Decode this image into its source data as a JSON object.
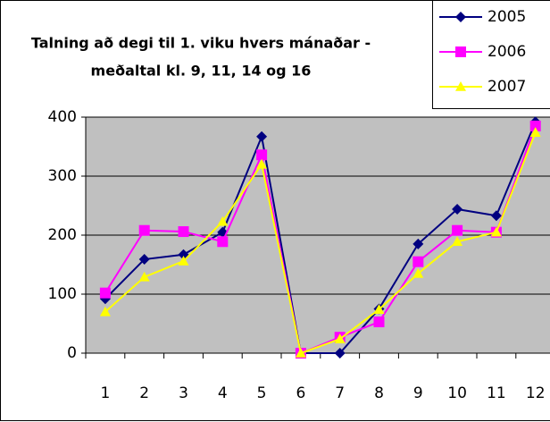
{
  "chart_data": {
    "type": "line",
    "title": [
      "Talning að degi til 1. viku hvers mánaðar -",
      "meðaltal kl. 9, 11, 14 og 16"
    ],
    "categories": [
      "1",
      "2",
      "3",
      "4",
      "5",
      "6",
      "7",
      "8",
      "9",
      "10",
      "11",
      "12"
    ],
    "series": [
      {
        "name": "2005",
        "color": "#000080",
        "marker": "diamond",
        "values": [
          92,
          159,
          167,
          205,
          367,
          0,
          0,
          75,
          185,
          244,
          233,
          392
        ]
      },
      {
        "name": "2006",
        "color": "#ff00ff",
        "marker": "square",
        "values": [
          102,
          208,
          206,
          189,
          336,
          0,
          27,
          53,
          155,
          208,
          205,
          385
        ]
      },
      {
        "name": "2007",
        "color": "#ffff00",
        "marker": "triangle",
        "values": [
          70,
          129,
          156,
          223,
          320,
          0,
          24,
          74,
          135,
          189,
          205,
          374
        ]
      }
    ],
    "ylim": [
      0,
      400
    ],
    "yticks": [
      0,
      100,
      200,
      300,
      400
    ],
    "grid": true,
    "legend": "top-right"
  }
}
